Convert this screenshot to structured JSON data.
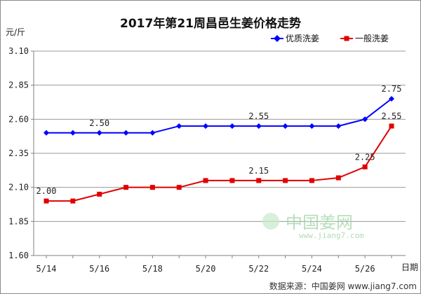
{
  "chart_data": {
    "type": "line",
    "title": "2017年第21周昌邑生姜价格走势",
    "ylabel": "元/斤",
    "xlabel": "日期",
    "ylim": [
      1.6,
      3.1
    ],
    "yticks": [
      "1.60",
      "1.85",
      "2.10",
      "2.35",
      "2.60",
      "2.85",
      "3.10"
    ],
    "xtick_labels": [
      "5/14",
      "5/16",
      "5/18",
      "5/20",
      "5/22",
      "5/24",
      "5/26"
    ],
    "x": [
      "5/14",
      "5/15",
      "5/16",
      "5/17",
      "5/18",
      "5/19",
      "5/20",
      "5/21",
      "5/22",
      "5/23",
      "5/24",
      "5/25",
      "5/26",
      "5/27"
    ],
    "series": [
      {
        "name": "优质洗姜",
        "color": "#0000ff",
        "marker": "diamond",
        "values": [
          2.5,
          2.5,
          2.5,
          2.5,
          2.5,
          2.55,
          2.55,
          2.55,
          2.55,
          2.55,
          2.55,
          2.55,
          2.6,
          2.75
        ]
      },
      {
        "name": "一般洗姜",
        "color": "#e00000",
        "marker": "square",
        "values": [
          2.0,
          2.0,
          2.05,
          2.1,
          2.1,
          2.1,
          2.15,
          2.15,
          2.15,
          2.15,
          2.15,
          2.17,
          2.25,
          2.55
        ]
      }
    ],
    "annotations": [
      {
        "series": 0,
        "index": 2,
        "text": "2.50"
      },
      {
        "series": 0,
        "index": 8,
        "text": "2.55"
      },
      {
        "series": 0,
        "index": 13,
        "text": "2.75"
      },
      {
        "series": 1,
        "index": 0,
        "text": "2.00"
      },
      {
        "series": 1,
        "index": 8,
        "text": "2.15"
      },
      {
        "series": 1,
        "index": 12,
        "text": "2.25"
      },
      {
        "series": 1,
        "index": 13,
        "text": "2.55"
      }
    ],
    "grid": "horizontal",
    "legend_position": "top-right"
  },
  "watermark": {
    "text": "中国姜网",
    "url": "www.jiang7.com"
  },
  "source": "数据来源：中国姜网 www.jiang7.com"
}
